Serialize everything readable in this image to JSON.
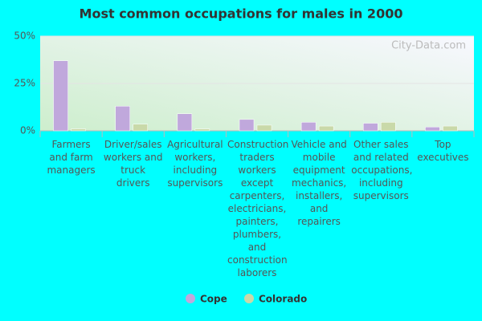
{
  "chart_data": {
    "type": "bar",
    "title": "Most common occupations for males in 2000",
    "watermark": "City-Data.com",
    "categories": [
      "Farmers and farm managers",
      "Driver/sales workers and truck drivers",
      "Agricultural workers, including supervisors",
      "Construction traders workers except carpenters, electricians, painters, plumbers, and construction laborers",
      "Vehicle and mobile equipment mechanics, installers, and repairers",
      "Other sales and related occupations, including supervisors",
      "Top executives"
    ],
    "series": [
      {
        "name": "Cope",
        "color": "#c0a8dc",
        "values": [
          37,
          13,
          9,
          6,
          4.5,
          4,
          2
        ]
      },
      {
        "name": "Colorado",
        "color": "#c9d9a9",
        "values": [
          1,
          3.5,
          1,
          3,
          2.5,
          4.5,
          2.5
        ]
      }
    ],
    "ylim": [
      0,
      50
    ],
    "yticks": [
      {
        "value": 0,
        "label": "0%"
      },
      {
        "value": 25,
        "label": "25%"
      },
      {
        "value": 50,
        "label": "50%"
      }
    ],
    "grid": true,
    "legend": "bottom"
  }
}
